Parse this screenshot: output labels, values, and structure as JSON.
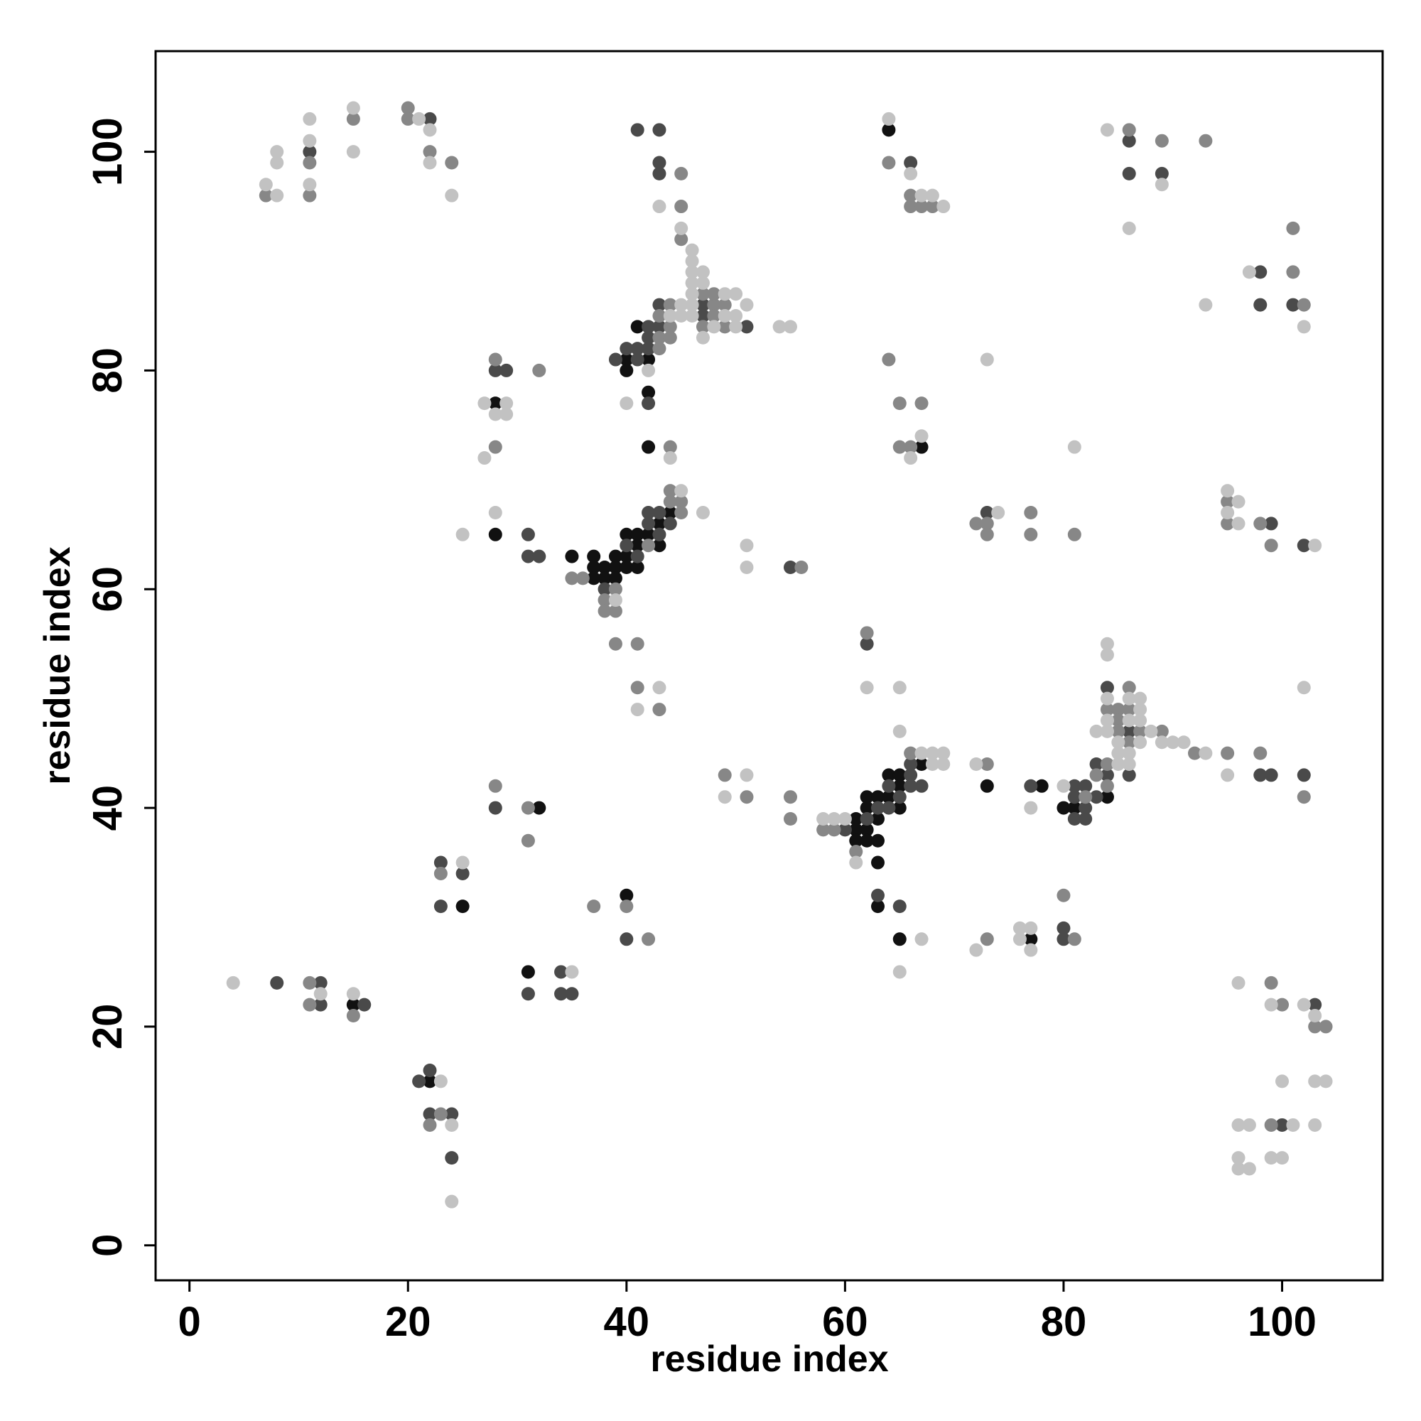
{
  "chart_data": {
    "type": "scatter",
    "x_label": "residue index",
    "y_label": "residue index",
    "xlim": [
      -3.1,
      109.2
    ],
    "ylim": [
      -3.2,
      109.2
    ],
    "xticks": [
      0,
      20,
      40,
      60,
      80,
      100
    ],
    "yticks": [
      0,
      20,
      40,
      60,
      80,
      100
    ],
    "series": [
      {
        "color": "#111111",
        "x": [
          41,
          40,
          42,
          40,
          42,
          42,
          28,
          28,
          35,
          37,
          37,
          37,
          38,
          38,
          39,
          39,
          39,
          40,
          40,
          40,
          41,
          41,
          41,
          42,
          43,
          43,
          44,
          64,
          67,
          67,
          73,
          78,
          61,
          61,
          62,
          61,
          62,
          63,
          62,
          62,
          63,
          63,
          64,
          64,
          65,
          65,
          65,
          63,
          63,
          65,
          84,
          80,
          81,
          77,
          32,
          25,
          40,
          31,
          15,
          22
        ],
        "values": [
          84,
          81,
          81,
          80,
          78,
          73,
          77,
          65,
          63,
          63,
          62,
          61,
          62,
          61,
          63,
          62,
          61,
          65,
          63,
          62,
          65,
          64,
          62,
          65,
          66,
          64,
          67,
          102,
          73,
          44,
          42,
          42,
          39,
          38,
          38,
          37,
          37,
          37,
          41,
          40,
          41,
          39,
          43,
          41,
          43,
          42,
          40,
          35,
          31,
          28,
          41,
          40,
          40,
          28,
          40,
          31,
          32,
          25,
          22,
          15
        ]
      },
      {
        "color": "#4a4a4a",
        "x": [
          11,
          22,
          41,
          43,
          43,
          43,
          43,
          47,
          47,
          51,
          42,
          43,
          40,
          41,
          42,
          39,
          41,
          42,
          42,
          28,
          29,
          31,
          31,
          32,
          38,
          40,
          41,
          42,
          42,
          43,
          43,
          44,
          55,
          62,
          66,
          73,
          99,
          102,
          86,
          86,
          89,
          98,
          98,
          101,
          84,
          86,
          83,
          84,
          86,
          98,
          99,
          102,
          66,
          77,
          62,
          60,
          63,
          64,
          64,
          65,
          66,
          66,
          67,
          63,
          65,
          81,
          82,
          81,
          83,
          82,
          81,
          82,
          80,
          80,
          28,
          23,
          25,
          23,
          40,
          34,
          31,
          34,
          35,
          8,
          12,
          12,
          16,
          21,
          22,
          22,
          24,
          24,
          103,
          100
        ],
        "values": [
          100,
          103,
          102,
          102,
          99,
          98,
          86,
          86,
          85,
          84,
          84,
          84,
          82,
          82,
          82,
          81,
          81,
          83,
          77,
          80,
          80,
          65,
          63,
          63,
          60,
          64,
          63,
          67,
          66,
          67,
          65,
          66,
          62,
          55,
          99,
          67,
          66,
          64,
          101,
          98,
          98,
          89,
          86,
          86,
          51,
          47,
          44,
          43,
          43,
          43,
          43,
          43,
          44,
          42,
          39,
          38,
          40,
          42,
          40,
          41,
          43,
          42,
          42,
          32,
          31,
          42,
          42,
          41,
          41,
          40,
          39,
          39,
          29,
          28,
          40,
          35,
          34,
          31,
          28,
          25,
          23,
          23,
          23,
          24,
          24,
          22,
          22,
          15,
          16,
          12,
          12,
          8,
          22,
          11
        ]
      },
      {
        "color": "#878787",
        "x": [
          7,
          11,
          11,
          15,
          20,
          20,
          22,
          24,
          45,
          45,
          45,
          44,
          48,
          49,
          47,
          48,
          43,
          48,
          44,
          47,
          49,
          43,
          44,
          43,
          28,
          32,
          28,
          44,
          35,
          36,
          38,
          38,
          39,
          39,
          42,
          44,
          44,
          45,
          45,
          56,
          39,
          41,
          41,
          43,
          64,
          66,
          66,
          67,
          68,
          64,
          65,
          67,
          65,
          66,
          86,
          89,
          93,
          101,
          101,
          102,
          72,
          73,
          73,
          77,
          77,
          81,
          95,
          95,
          98,
          99,
          62,
          86,
          84,
          85,
          86,
          85,
          85,
          87,
          89,
          86,
          92,
          84,
          83,
          84,
          95,
          98,
          102,
          66,
          73,
          58,
          59,
          61,
          82,
          80,
          81,
          73,
          49,
          51,
          55,
          55,
          28,
          31,
          31,
          23,
          37,
          40,
          42,
          11,
          11,
          15,
          23,
          22,
          99,
          100,
          103,
          104,
          99
        ],
        "values": [
          96,
          99,
          96,
          103,
          104,
          103,
          100,
          99,
          98,
          95,
          92,
          86,
          86,
          86,
          87,
          87,
          85,
          85,
          84,
          84,
          84,
          83,
          83,
          82,
          81,
          80,
          73,
          73,
          61,
          61,
          59,
          58,
          60,
          58,
          64,
          69,
          68,
          68,
          67,
          62,
          55,
          55,
          51,
          49,
          99,
          96,
          95,
          95,
          95,
          81,
          77,
          77,
          73,
          73,
          102,
          101,
          101,
          93,
          89,
          86,
          66,
          66,
          65,
          67,
          65,
          65,
          68,
          66,
          66,
          64,
          56,
          51,
          49,
          49,
          49,
          48,
          47,
          47,
          47,
          46,
          45,
          44,
          43,
          42,
          45,
          45,
          41,
          45,
          44,
          38,
          38,
          36,
          41,
          32,
          28,
          28,
          43,
          41,
          41,
          39,
          42,
          40,
          37,
          34,
          31,
          31,
          28,
          24,
          22,
          21,
          12,
          11,
          24,
          22,
          20,
          20,
          11
        ]
      },
      {
        "color": "#c2c2c2",
        "x": [
          7,
          8,
          8,
          8,
          11,
          11,
          11,
          15,
          15,
          21,
          22,
          22,
          24,
          43,
          45,
          46,
          46,
          46,
          47,
          46,
          47,
          45,
          46,
          51,
          46,
          49,
          50,
          44,
          45,
          46,
          49,
          50,
          48,
          50,
          47,
          54,
          55,
          42,
          40,
          44,
          27,
          29,
          28,
          29,
          27,
          28,
          25,
          39,
          45,
          47,
          51,
          51,
          43,
          41,
          64,
          66,
          67,
          68,
          69,
          67,
          66,
          73,
          81,
          84,
          89,
          86,
          97,
          93,
          102,
          74,
          95,
          96,
          95,
          96,
          103,
          62,
          65,
          84,
          84,
          84,
          86,
          87,
          87,
          84,
          86,
          87,
          83,
          84,
          88,
          85,
          87,
          89,
          90,
          91,
          85,
          86,
          93,
          85,
          86,
          95,
          102,
          65,
          67,
          68,
          69,
          68,
          69,
          72,
          80,
          77,
          58,
          59,
          60,
          61,
          65,
          67,
          72,
          76,
          77,
          76,
          77,
          49,
          51,
          25,
          35,
          4,
          12,
          15,
          23,
          24,
          24,
          96,
          99,
          102,
          103,
          100,
          103,
          104,
          96,
          97,
          101,
          103,
          96,
          96,
          97,
          99,
          100
        ],
        "values": [
          97,
          96,
          100,
          99,
          103,
          101,
          97,
          104,
          100,
          103,
          102,
          99,
          96,
          95,
          93,
          91,
          90,
          89,
          89,
          88,
          88,
          86,
          86,
          86,
          87,
          87,
          87,
          85,
          85,
          85,
          85,
          85,
          84,
          84,
          83,
          84,
          84,
          80,
          77,
          72,
          77,
          77,
          76,
          76,
          72,
          67,
          65,
          59,
          69,
          67,
          64,
          62,
          51,
          49,
          103,
          98,
          96,
          96,
          95,
          74,
          72,
          81,
          73,
          102,
          97,
          93,
          89,
          86,
          84,
          67,
          69,
          68,
          67,
          66,
          64,
          51,
          51,
          55,
          54,
          50,
          50,
          50,
          49,
          48,
          48,
          48,
          47,
          47,
          47,
          46,
          46,
          46,
          46,
          46,
          45,
          45,
          45,
          44,
          44,
          43,
          51,
          47,
          45,
          45,
          45,
          44,
          44,
          44,
          42,
          40,
          39,
          39,
          39,
          35,
          25,
          28,
          27,
          29,
          29,
          28,
          27,
          41,
          43,
          35,
          25,
          24,
          23,
          23,
          15,
          11,
          4,
          24,
          22,
          22,
          21,
          15,
          15,
          15,
          11,
          11,
          11,
          11,
          8,
          7,
          7,
          8,
          8
        ]
      }
    ]
  }
}
